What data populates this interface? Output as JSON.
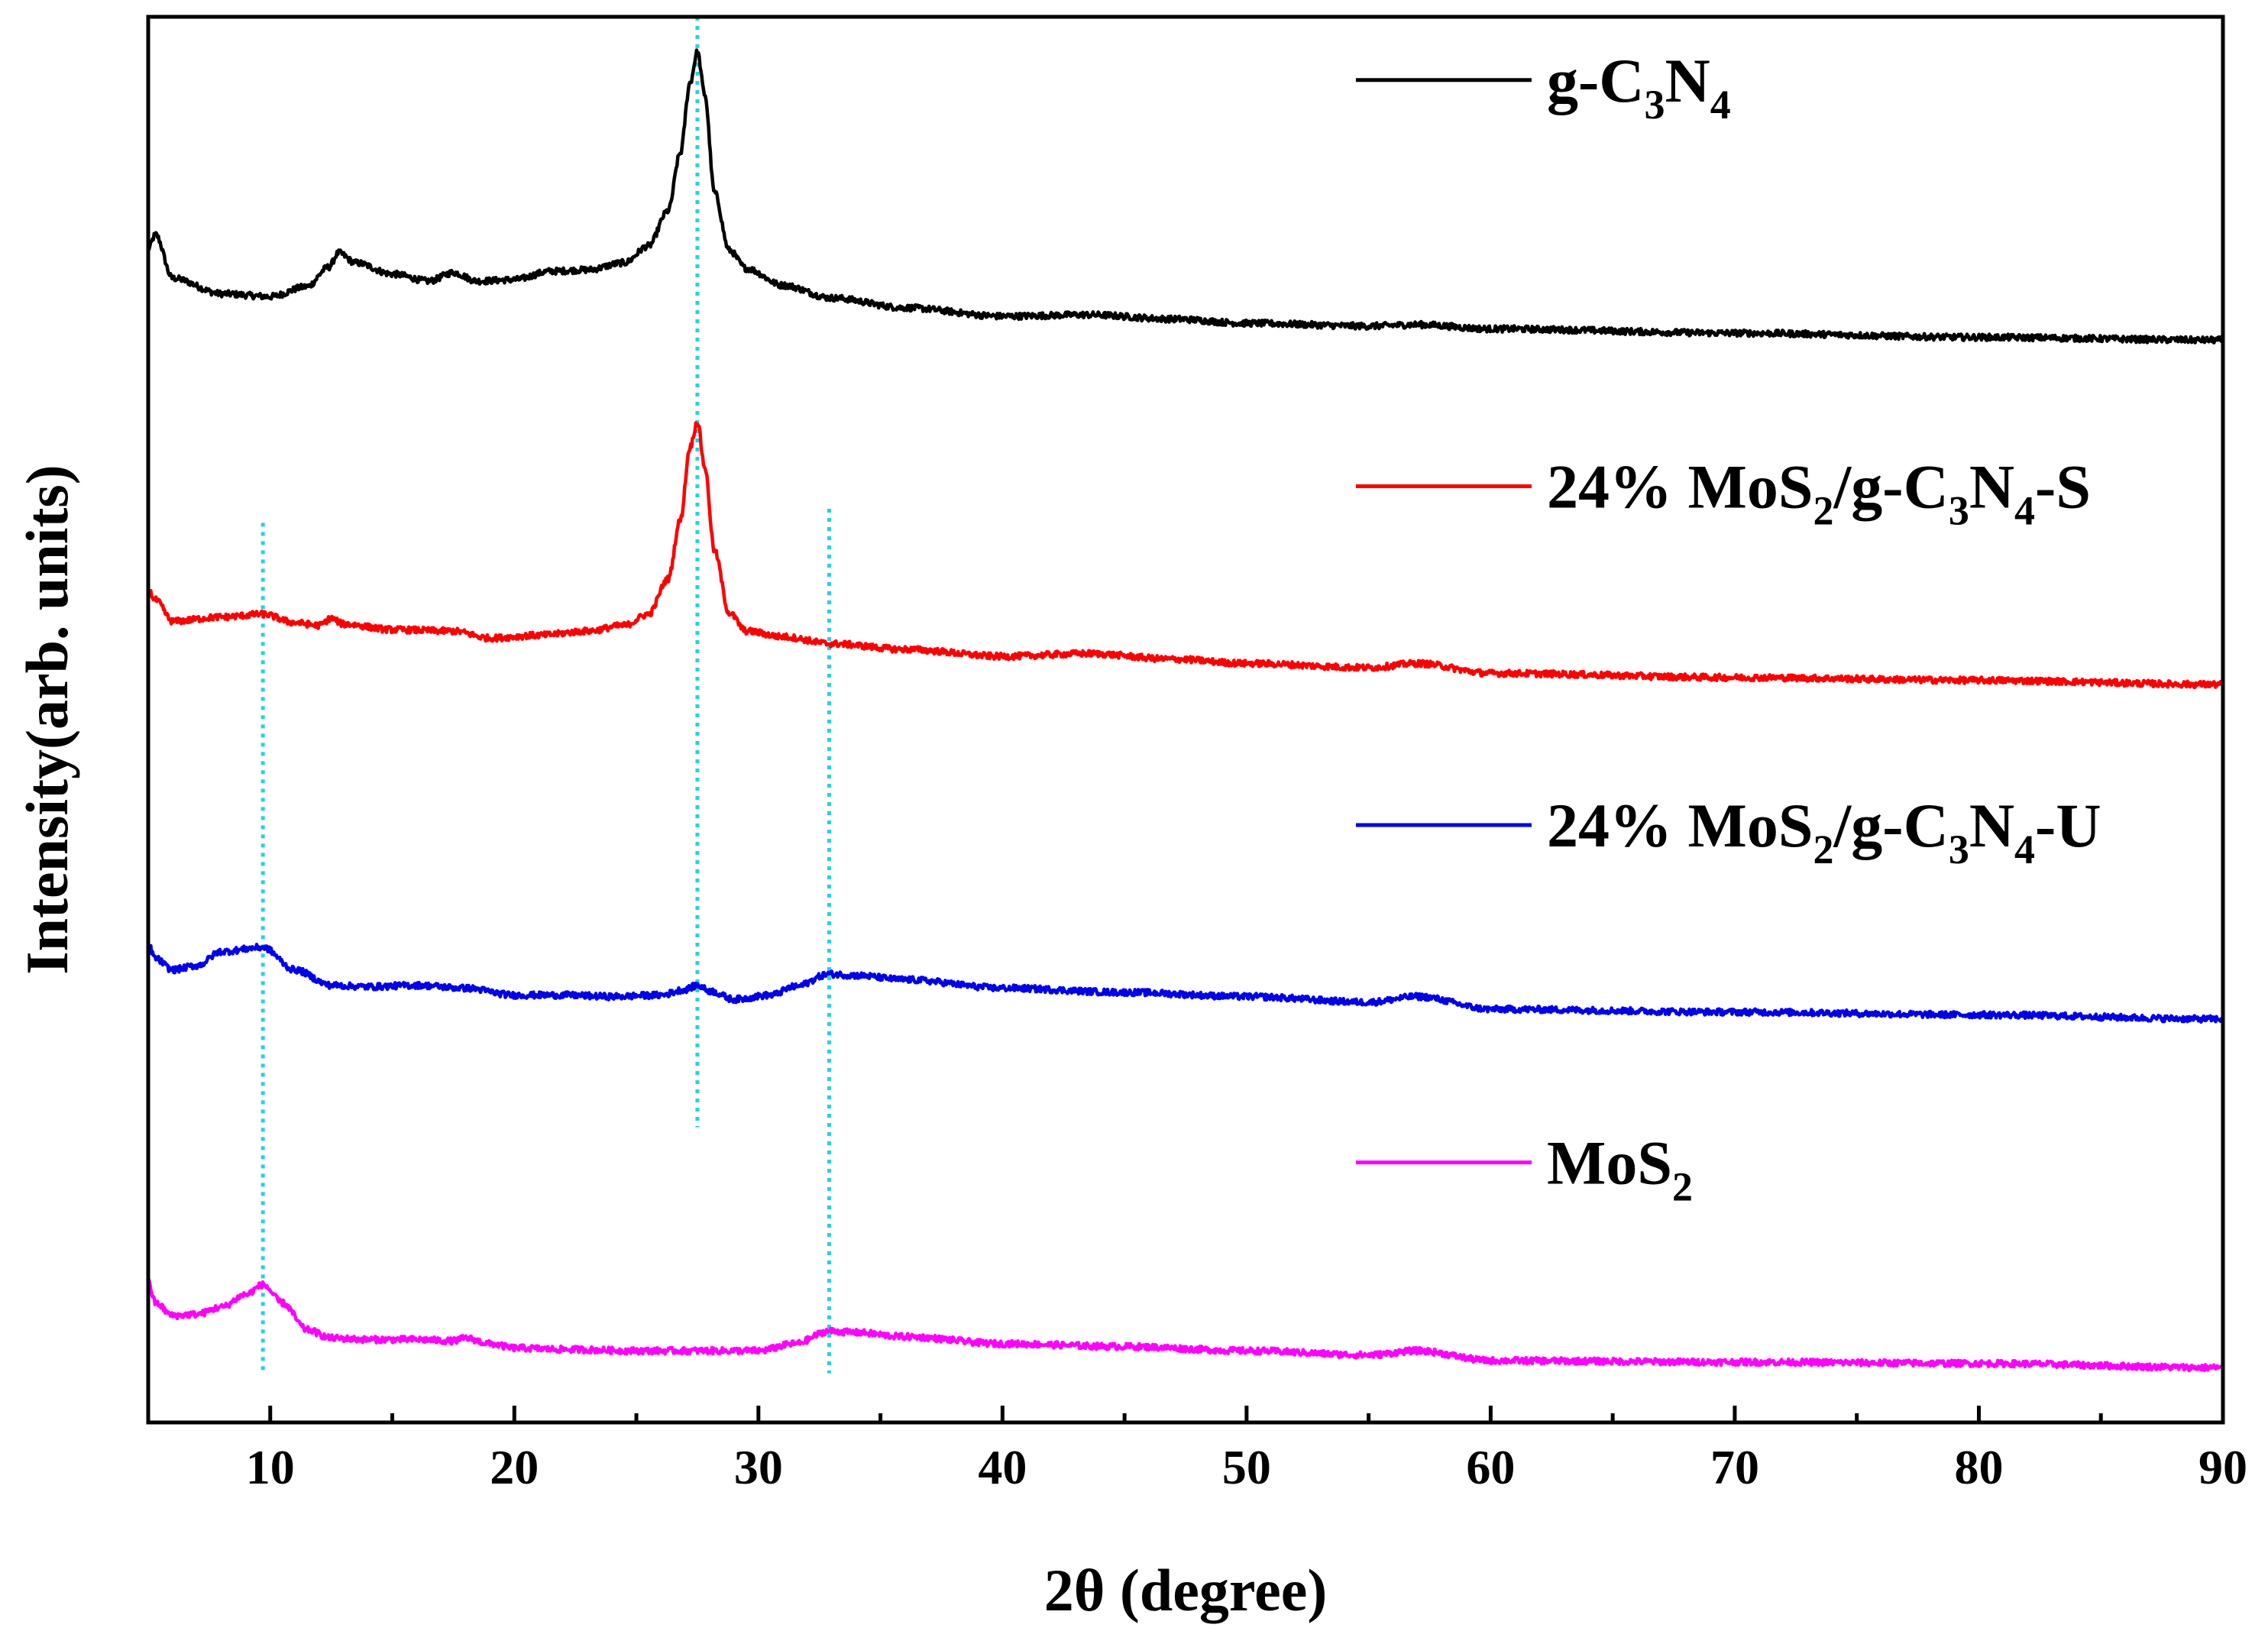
{
  "chart_data": {
    "type": "line",
    "title": "",
    "xlabel": "2θ (degree)",
    "ylabel": "Intensity(arb. units)",
    "xlim": [
      5,
      90
    ],
    "ylim": [
      0,
      100
    ],
    "xticks": [
      10,
      20,
      30,
      40,
      50,
      60,
      70,
      80,
      90
    ],
    "ytick_labels": false,
    "grid": false,
    "legend_position": "top-right (each entry placed beside its curve)",
    "reference_lines": [
      {
        "x": 9.7,
        "color": "#22d3e6",
        "style": "dotted",
        "y_from": 3.5,
        "y_to": 64
      },
      {
        "x": 27.5,
        "color": "#22d3e6",
        "style": "dotted",
        "y_from": 21,
        "y_to": 100
      },
      {
        "x": 32.9,
        "color": "#22d3e6",
        "style": "dotted",
        "y_from": 3.5,
        "y_to": 65
      }
    ],
    "series": [
      {
        "name": "g-C3N4",
        "legend": [
          {
            "t": "g-C"
          },
          {
            "t": "3",
            "sub": true
          },
          {
            "t": "N"
          },
          {
            "t": "4",
            "sub": true
          }
        ],
        "color": "#000000",
        "x": [
          5,
          5.3,
          6,
          8,
          10,
          11.5,
          12.4,
          12.8,
          13.5,
          15,
          16.5,
          17.5,
          18.5,
          20,
          21.5,
          23,
          24.5,
          25.5,
          26.3,
          26.8,
          27.2,
          27.5,
          27.8,
          28.2,
          28.8,
          29.5,
          31,
          33,
          36,
          40,
          43.5,
          47,
          50,
          55,
          57,
          60,
          70,
          80,
          90
        ],
        "y": [
          83.5,
          84.5,
          81.4,
          80.3,
          80.1,
          80.8,
          82.2,
          83.2,
          82.5,
          81.7,
          81.2,
          81.8,
          81.2,
          81.3,
          81.9,
          82.0,
          82.5,
          83.7,
          86.2,
          90.3,
          95.3,
          97.5,
          94.5,
          87.5,
          83.4,
          82.1,
          80.9,
          80.0,
          79.3,
          78.7,
          78.8,
          78.5,
          78.2,
          78.0,
          78.1,
          77.8,
          77.5,
          77.2,
          77.0
        ]
      },
      {
        "name": "24% MoS2/g-C3N4-S",
        "legend": [
          {
            "t": "24% MoS"
          },
          {
            "t": "2",
            "sub": true
          },
          {
            "t": "/g-C"
          },
          {
            "t": "3",
            "sub": true
          },
          {
            "t": "N"
          },
          {
            "t": "4",
            "sub": true
          },
          {
            "t": "-S"
          }
        ],
        "color": "#ff0000",
        "x": [
          5,
          5.3,
          6,
          8,
          9.7,
          11,
          12,
          12.5,
          13,
          15,
          17.5,
          19,
          21,
          23,
          24.5,
          25.5,
          26.3,
          26.8,
          27.2,
          27.5,
          27.8,
          28.2,
          28.8,
          29.5,
          31,
          33,
          36,
          40,
          43.5,
          47,
          50,
          55,
          57,
          60,
          70,
          80,
          90
        ],
        "y": [
          59.2,
          58.5,
          57.0,
          57.3,
          57.5,
          56.9,
          56.7,
          57.2,
          56.8,
          56.4,
          56.3,
          55.8,
          56.0,
          56.3,
          56.7,
          57.5,
          60.0,
          64.2,
          69.4,
          71.2,
          68.0,
          62.0,
          57.6,
          56.3,
          55.9,
          55.4,
          55.0,
          54.5,
          54.7,
          54.3,
          54.0,
          53.7,
          54.0,
          53.3,
          53.0,
          52.8,
          52.5
        ]
      },
      {
        "name": "24% MoS2/g-C3N4-U",
        "legend": [
          {
            "t": "24% MoS"
          },
          {
            "t": "2",
            "sub": true
          },
          {
            "t": "/g-C"
          },
          {
            "t": "3",
            "sub": true
          },
          {
            "t": "N"
          },
          {
            "t": "4",
            "sub": true
          },
          {
            "t": "-U"
          }
        ],
        "color": "#0000ee",
        "x": [
          5,
          5.3,
          6,
          7,
          8,
          9.7,
          11,
          12.5,
          14,
          16,
          18,
          20,
          22,
          24,
          26,
          27,
          27.5,
          28,
          29,
          30.5,
          31.5,
          32.9,
          34,
          36,
          40,
          45,
          50,
          55,
          57,
          60,
          70,
          80,
          90
        ],
        "y": [
          34.0,
          33.0,
          32.2,
          32.5,
          33.5,
          33.8,
          32.2,
          31.1,
          31.0,
          31.1,
          30.9,
          30.4,
          30.4,
          30.3,
          30.4,
          30.8,
          31.1,
          30.7,
          30.1,
          30.4,
          31.0,
          31.9,
          31.8,
          31.5,
          30.9,
          30.6,
          30.3,
          29.9,
          30.3,
          29.4,
          29.2,
          29.0,
          28.7
        ]
      },
      {
        "name": "MoS2",
        "legend": [
          {
            "t": "MoS"
          },
          {
            "t": "2",
            "sub": true
          }
        ],
        "color": "#ff00ff",
        "x": [
          5,
          5.3,
          6,
          7,
          8,
          9,
          9.7,
          10.5,
          11.5,
          12.5,
          14,
          16,
          17.5,
          18,
          19,
          20,
          22,
          25,
          28,
          30,
          31.5,
          32.9,
          34,
          36,
          40,
          45,
          50,
          55,
          57,
          60,
          70,
          80,
          90
        ],
        "y": [
          10.0,
          8.5,
          7.6,
          7.7,
          8.2,
          9.1,
          9.8,
          8.5,
          6.6,
          6.0,
          5.9,
          5.9,
          5.8,
          6.0,
          5.6,
          5.3,
          5.2,
          5.1,
          5.1,
          5.1,
          5.6,
          6.5,
          6.4,
          6.1,
          5.6,
          5.4,
          5.1,
          4.8,
          5.1,
          4.4,
          4.3,
          4.2,
          3.9
        ]
      }
    ]
  }
}
